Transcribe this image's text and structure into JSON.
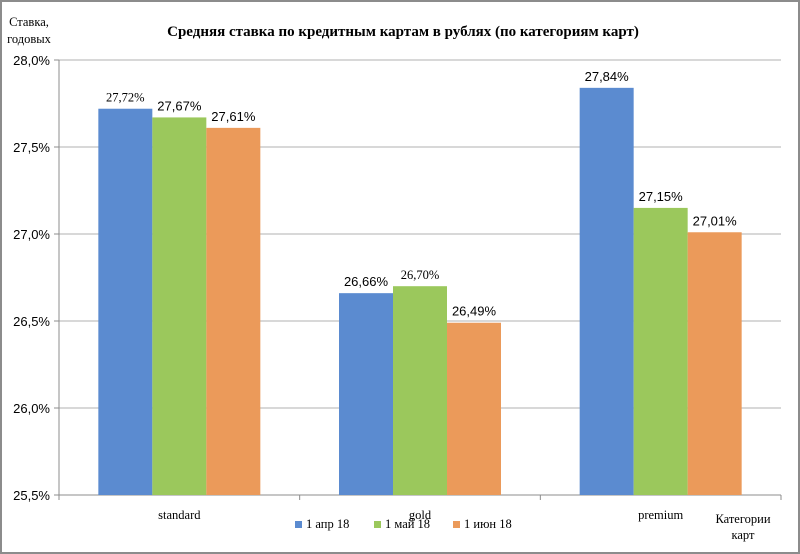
{
  "chart_data": {
    "type": "bar",
    "title": "Средняя ставка по кредитным картам в рублях (по категориям карт)",
    "ylabel": [
      "Ставка,",
      "годовых"
    ],
    "xlabel": [
      "Категории",
      "карт"
    ],
    "ylim": [
      25.5,
      28.0
    ],
    "ytick_step": 0.5,
    "ytick_labels": [
      "25,5%",
      "26,0%",
      "26,5%",
      "27,0%",
      "27,5%",
      "28,0%"
    ],
    "grid": true,
    "legend_position": "bottom",
    "categories": [
      "standard",
      "gold",
      "premium"
    ],
    "series": [
      {
        "name": "1 апр 18",
        "color": "#5b8bd0",
        "values": [
          27.72,
          26.66,
          27.84
        ],
        "labels": [
          "27,72%",
          "26,66%",
          "27,84%"
        ],
        "label_fonts": [
          "serif",
          "sans",
          "sans"
        ]
      },
      {
        "name": "1 май 18",
        "color": "#9bc85c",
        "values": [
          27.67,
          26.7,
          27.15
        ],
        "labels": [
          "27,67%",
          "26,70%",
          "27,15%"
        ],
        "label_fonts": [
          "sans",
          "serif",
          "sans"
        ]
      },
      {
        "name": "1 июн 18",
        "color": "#eb9a5a",
        "values": [
          27.61,
          26.49,
          27.01
        ],
        "labels": [
          "27,61%",
          "26,49%",
          "27,01%"
        ],
        "label_fonts": [
          "sans",
          "sans",
          "sans"
        ]
      }
    ]
  }
}
